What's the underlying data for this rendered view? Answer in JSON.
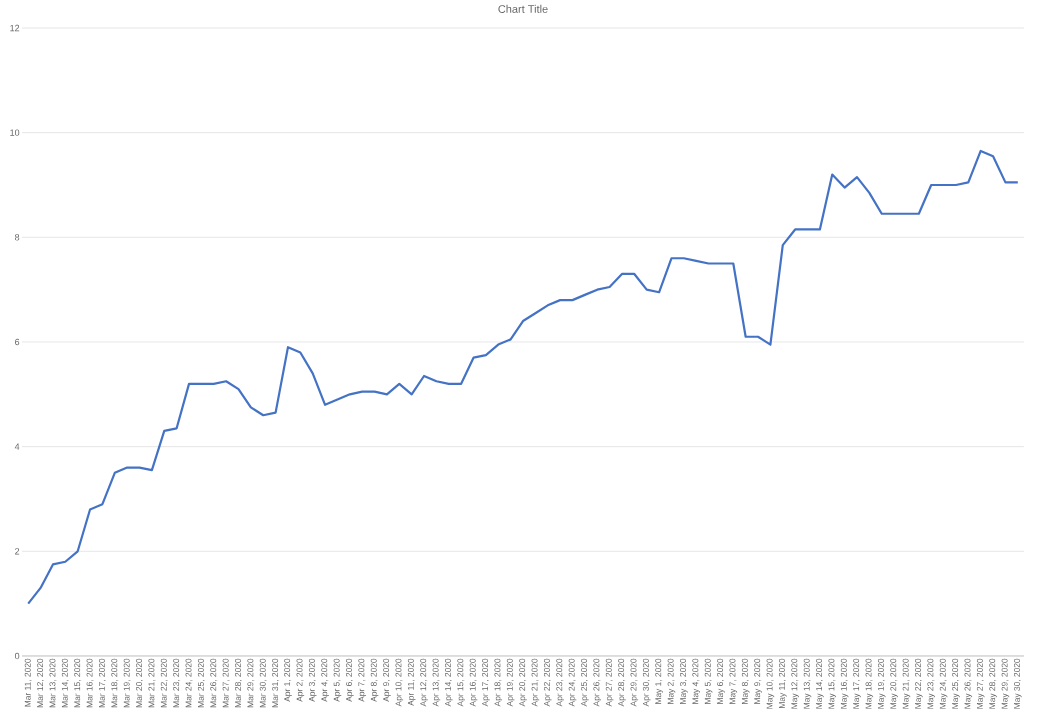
{
  "chart_data": {
    "type": "line",
    "title": "Chart Title",
    "categories": [
      "Mar 11, 2020",
      "Mar 12, 2020",
      "Mar 13, 2020",
      "Mar 14, 2020",
      "Mar 15, 2020",
      "Mar 16, 2020",
      "Mar 17, 2020",
      "Mar 18, 2020",
      "Mar 19, 2020",
      "Mar 20, 2020",
      "Mar 21, 2020",
      "Mar 22, 2020",
      "Mar 23, 2020",
      "Mar 24, 2020",
      "Mar 25, 2020",
      "Mar 26, 2020",
      "Mar 27, 2020",
      "Mar 28, 2020",
      "Mar 29, 2020",
      "Mar 30, 2020",
      "Mar 31, 2020",
      "Apr 1, 2020",
      "Apr 2, 2020",
      "Apr 3, 2020",
      "Apr 4, 2020",
      "Apr 5, 2020",
      "Apr 6, 2020",
      "Apr 7, 2020",
      "Apr 8, 2020",
      "Apr 9, 2020",
      "Apr 10, 2020",
      "Apr 11, 2020",
      "Apr 12, 2020",
      "Apr 13, 2020",
      "Apr 14, 2020",
      "Apr 15, 2020",
      "Apr 16, 2020",
      "Apr 17, 2020",
      "Apr 18, 2020",
      "Apr 19, 2020",
      "Apr 20, 2020",
      "Apr 21, 2020",
      "Apr 22, 2020",
      "Apr 23, 2020",
      "Apr 24, 2020",
      "Apr 25, 2020",
      "Apr 26, 2020",
      "Apr 27, 2020",
      "Apr 28, 2020",
      "Apr 29, 2020",
      "Apr 30, 2020",
      "May 1, 2020",
      "May 2, 2020",
      "May 3, 2020",
      "May 4, 2020",
      "May 5, 2020",
      "May 6, 2020",
      "May 7, 2020",
      "May 8, 2020",
      "May 9, 2020",
      "May 10, 2020",
      "May 11, 2020",
      "May 12, 2020",
      "May 13, 2020",
      "May 14, 2020",
      "May 15, 2020",
      "May 16, 2020",
      "May 17, 2020",
      "May 18, 2020",
      "May 19, 2020",
      "May 20, 2020",
      "May 21, 2020",
      "May 22, 2020",
      "May 23, 2020",
      "May 24, 2020",
      "May 25, 2020",
      "May 26, 2020",
      "May 27, 2020",
      "May 28, 2020",
      "May 29, 2020",
      "May 30, 2020"
    ],
    "values": [
      1.0,
      1.3,
      1.75,
      1.8,
      2.0,
      2.8,
      2.9,
      3.5,
      3.6,
      3.6,
      3.55,
      4.3,
      4.35,
      5.2,
      5.2,
      5.2,
      5.25,
      5.1,
      4.75,
      4.6,
      4.65,
      5.9,
      5.8,
      5.4,
      4.8,
      4.9,
      5.0,
      5.05,
      5.05,
      5.0,
      5.2,
      5.0,
      5.35,
      5.25,
      5.2,
      5.2,
      5.7,
      5.75,
      5.95,
      6.05,
      6.4,
      6.55,
      6.7,
      6.8,
      6.8,
      6.9,
      7.0,
      7.05,
      7.3,
      7.3,
      7.0,
      6.95,
      7.6,
      7.6,
      7.55,
      7.5,
      7.5,
      7.5,
      6.1,
      6.1,
      5.95,
      7.85,
      8.15,
      8.15,
      8.15,
      9.2,
      8.95,
      9.15,
      8.85,
      8.45,
      8.45,
      8.45,
      8.45,
      9.0,
      9.0,
      9.0,
      9.05,
      9.65,
      9.55,
      9.05,
      9.05
    ],
    "color": "#4472c4",
    "ylim": [
      0,
      12
    ],
    "yticks": [
      0,
      2,
      4,
      6,
      8,
      10,
      12
    ],
    "grid": "y"
  }
}
